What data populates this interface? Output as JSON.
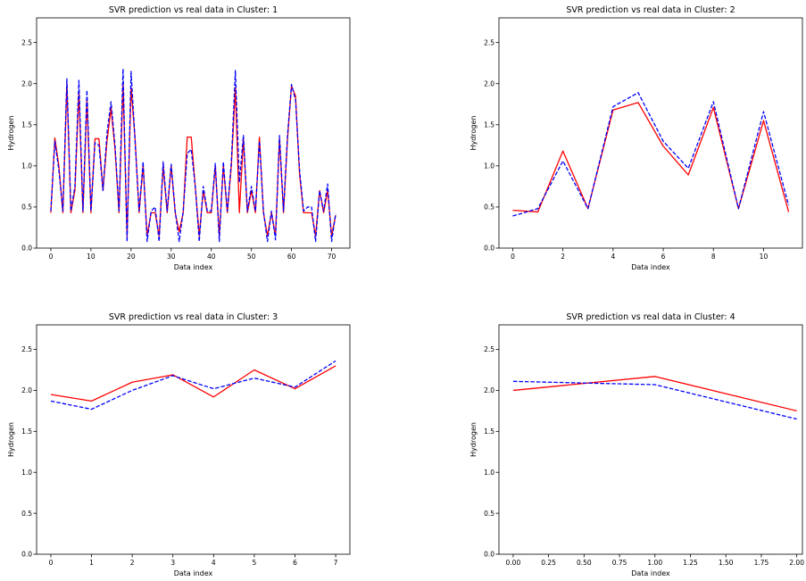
{
  "chart_data": [
    {
      "type": "line",
      "title": "SVR prediction vs real data in Cluster: 1",
      "xlabel": "Data index",
      "ylabel": "Hydrogen",
      "xlim": [
        -3.55,
        74.55
      ],
      "ylim": [
        0.0,
        2.8
      ],
      "xticks": [
        0,
        10,
        20,
        30,
        40,
        50,
        60,
        70
      ],
      "xtick_labels": [
        "0",
        "10",
        "20",
        "30",
        "40",
        "50",
        "60",
        "70"
      ],
      "yticks": [
        0.0,
        0.5,
        1.0,
        1.5,
        2.0,
        2.5
      ],
      "ytick_labels": [
        "0.0",
        "0.5",
        "1.0",
        "1.5",
        "2.0",
        "2.5"
      ],
      "series": [
        {
          "color": "#ff0000",
          "dash": "solid",
          "x": [
            0,
            1,
            2,
            3,
            4,
            5,
            6,
            7,
            8,
            9,
            10,
            11,
            12,
            13,
            14,
            15,
            16,
            17,
            18,
            19,
            20,
            21,
            22,
            23,
            24,
            25,
            26,
            27,
            28,
            29,
            30,
            31,
            32,
            33,
            34,
            35,
            36,
            37,
            38,
            39,
            40,
            41,
            42,
            43,
            44,
            45,
            46,
            47,
            48,
            49,
            50,
            51,
            52,
            53,
            54,
            55,
            56,
            57,
            58,
            59,
            60,
            61,
            62,
            63,
            64,
            65,
            66,
            67,
            68,
            69,
            70,
            71
          ],
          "y": [
            0.43,
            1.34,
            1.0,
            0.43,
            2.0,
            0.43,
            0.7,
            1.9,
            0.43,
            1.8,
            0.43,
            1.33,
            1.33,
            0.7,
            1.3,
            1.7,
            1.2,
            0.43,
            2.0,
            0.15,
            1.95,
            1.33,
            0.43,
            1.0,
            0.15,
            0.43,
            0.43,
            0.15,
            1.0,
            0.43,
            1.0,
            0.43,
            0.2,
            0.43,
            1.35,
            1.35,
            0.75,
            0.15,
            0.7,
            0.43,
            0.43,
            1.0,
            0.15,
            1.0,
            0.43,
            1.0,
            1.95,
            0.43,
            1.33,
            0.43,
            0.7,
            0.43,
            1.35,
            0.43,
            0.15,
            0.43,
            0.15,
            1.33,
            0.43,
            1.33,
            1.97,
            1.85,
            0.9,
            0.43,
            0.43,
            0.43,
            0.15,
            0.7,
            0.43,
            0.7,
            0.15,
            0.4
          ]
        },
        {
          "color": "#0000ff",
          "dash": "dashed",
          "x": [
            0,
            1,
            2,
            3,
            4,
            5,
            6,
            7,
            8,
            9,
            10,
            11,
            12,
            13,
            14,
            15,
            16,
            17,
            18,
            19,
            20,
            21,
            22,
            23,
            24,
            25,
            26,
            27,
            28,
            29,
            30,
            31,
            32,
            33,
            34,
            35,
            36,
            37,
            38,
            39,
            40,
            41,
            42,
            43,
            44,
            45,
            46,
            47,
            48,
            49,
            50,
            51,
            52,
            53,
            54,
            55,
            56,
            57,
            58,
            59,
            60,
            61,
            62,
            63,
            64,
            65,
            66,
            67,
            68,
            69,
            70,
            71
          ],
          "y": [
            0.45,
            1.3,
            0.95,
            0.45,
            2.06,
            0.45,
            0.75,
            2.04,
            0.45,
            1.92,
            0.45,
            1.28,
            1.25,
            0.7,
            1.4,
            1.78,
            1.25,
            0.45,
            2.18,
            0.08,
            2.15,
            1.3,
            0.45,
            1.05,
            0.08,
            0.45,
            0.5,
            0.08,
            1.05,
            0.45,
            1.02,
            0.45,
            0.08,
            0.45,
            1.15,
            1.2,
            0.75,
            0.08,
            0.75,
            0.45,
            0.45,
            1.03,
            0.08,
            1.05,
            0.45,
            1.05,
            2.16,
            0.8,
            1.37,
            0.45,
            0.75,
            0.45,
            1.3,
            0.45,
            0.08,
            0.45,
            0.1,
            1.37,
            0.45,
            1.37,
            1.99,
            1.8,
            0.95,
            0.45,
            0.5,
            0.5,
            0.08,
            0.7,
            0.45,
            0.78,
            0.08,
            0.42
          ]
        }
      ]
    },
    {
      "type": "line",
      "title": "SVR prediction vs real data in Cluster: 2",
      "xlabel": "Data index",
      "ylabel": "Hydrogen",
      "xlim": [
        -0.55,
        11.55
      ],
      "ylim": [
        0.0,
        2.8
      ],
      "xticks": [
        0,
        2,
        4,
        6,
        8,
        10
      ],
      "xtick_labels": [
        "0",
        "2",
        "4",
        "6",
        "8",
        "10"
      ],
      "yticks": [
        0.0,
        0.5,
        1.0,
        1.5,
        2.0,
        2.5
      ],
      "ytick_labels": [
        "0.0",
        "0.5",
        "1.0",
        "1.5",
        "2.0",
        "2.5"
      ],
      "series": [
        {
          "color": "#ff0000",
          "dash": "solid",
          "x": [
            0,
            1,
            2,
            3,
            4,
            5,
            6,
            7,
            8,
            9,
            10,
            11
          ],
          "y": [
            0.46,
            0.44,
            1.18,
            0.48,
            1.68,
            1.77,
            1.24,
            0.89,
            1.71,
            0.48,
            1.55,
            0.44
          ]
        },
        {
          "color": "#0000ff",
          "dash": "dashed",
          "x": [
            0,
            1,
            2,
            3,
            4,
            5,
            6,
            7,
            8,
            9,
            10,
            11
          ],
          "y": [
            0.39,
            0.48,
            1.06,
            0.48,
            1.72,
            1.89,
            1.3,
            0.97,
            1.78,
            0.48,
            1.66,
            0.52
          ]
        }
      ]
    },
    {
      "type": "line",
      "title": "SVR prediction vs real data in Cluster: 3",
      "xlabel": "Data index",
      "ylabel": "Hydrogen",
      "xlim": [
        -0.35,
        7.35
      ],
      "ylim": [
        0.0,
        2.8
      ],
      "xticks": [
        0,
        1,
        2,
        3,
        4,
        5,
        6,
        7
      ],
      "xtick_labels": [
        "0",
        "1",
        "2",
        "3",
        "4",
        "5",
        "6",
        "7"
      ],
      "yticks": [
        0.0,
        0.5,
        1.0,
        1.5,
        2.0,
        2.5
      ],
      "ytick_labels": [
        "0.0",
        "0.5",
        "1.0",
        "1.5",
        "2.0",
        "2.5"
      ],
      "series": [
        {
          "color": "#ff0000",
          "dash": "solid",
          "x": [
            0,
            1,
            2,
            3,
            4,
            5,
            6,
            7
          ],
          "y": [
            1.95,
            1.87,
            2.1,
            2.19,
            1.92,
            2.25,
            2.02,
            2.3
          ]
        },
        {
          "color": "#0000ff",
          "dash": "dashed",
          "x": [
            0,
            1,
            2,
            3,
            4,
            5,
            6,
            7
          ],
          "y": [
            1.87,
            1.77,
            2.0,
            2.18,
            2.02,
            2.15,
            2.04,
            2.36
          ]
        }
      ]
    },
    {
      "type": "line",
      "title": "SVR prediction vs real data in Cluster: 4",
      "xlabel": "Data index",
      "ylabel": "Hydrogen",
      "xlim": [
        -0.1,
        2.04
      ],
      "ylim": [
        0.0,
        2.8
      ],
      "xticks": [
        0.0,
        0.25,
        0.5,
        0.75,
        1.0,
        1.25,
        1.5,
        1.75,
        2.0
      ],
      "xtick_labels": [
        "0.00",
        "0.25",
        "0.50",
        "0.75",
        "1.00",
        "1.25",
        "1.50",
        "1.75",
        "2.00"
      ],
      "yticks": [
        0.0,
        0.5,
        1.0,
        1.5,
        2.0,
        2.5
      ],
      "ytick_labels": [
        "0.0",
        "0.5",
        "1.0",
        "1.5",
        "2.0",
        "2.5"
      ],
      "series": [
        {
          "color": "#ff0000",
          "dash": "solid",
          "x": [
            0,
            1,
            2
          ],
          "y": [
            2.0,
            2.17,
            1.75
          ]
        },
        {
          "color": "#0000ff",
          "dash": "dashed",
          "x": [
            0,
            1,
            2
          ],
          "y": [
            2.11,
            2.07,
            1.65
          ]
        }
      ]
    }
  ]
}
